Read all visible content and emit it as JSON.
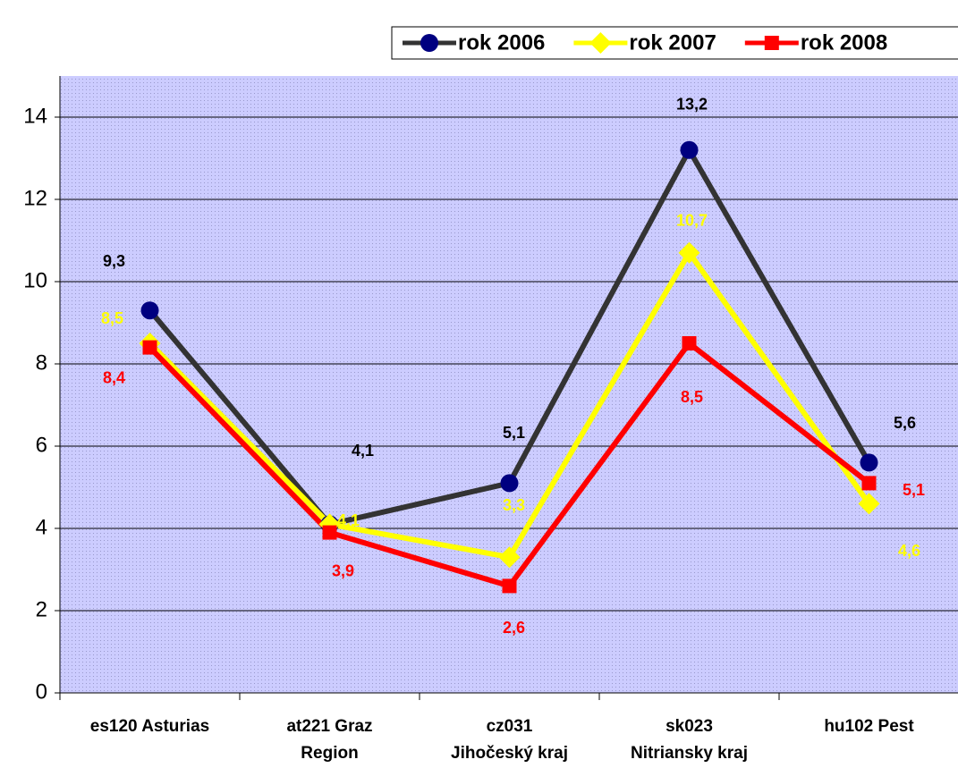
{
  "chart_data": {
    "type": "line",
    "categories": [
      "es120 Asturias",
      "at221 Graz\nRegion",
      "cz031\nJihočeský kraj",
      "sk023\nNitriansky kraj",
      "hu102 Pest"
    ],
    "series": [
      {
        "name": "rok 2006",
        "color": "#333333",
        "marker_color": "#000080",
        "marker": "circle",
        "values": [
          9.3,
          4.1,
          5.1,
          13.2,
          5.6
        ],
        "value_labels": [
          "9,3",
          "4,1",
          "5,1",
          "13,2",
          "5,6"
        ],
        "label_color": "#000000"
      },
      {
        "name": "rok 2007",
        "color": "#ffff00",
        "marker_color": "#ffff00",
        "marker": "diamond",
        "values": [
          8.5,
          4.1,
          3.3,
          10.7,
          4.6
        ],
        "value_labels": [
          "8,5",
          "4,1",
          "3,3",
          "10,7",
          "4,6"
        ],
        "label_color": "#ffff00"
      },
      {
        "name": "rok 2008",
        "color": "#ff0000",
        "marker_color": "#ff0000",
        "marker": "square",
        "values": [
          8.4,
          3.9,
          2.6,
          8.5,
          5.1
        ],
        "value_labels": [
          "8,4",
          "3,9",
          "2,6",
          "8,5",
          "5,1"
        ],
        "label_color": "#ff0000"
      }
    ],
    "ylim": [
      0,
      15
    ],
    "yticks": [
      0,
      2,
      4,
      6,
      8,
      10,
      12,
      14
    ],
    "grid": true,
    "plot_background": "#ccccff",
    "legend": "top-right"
  }
}
